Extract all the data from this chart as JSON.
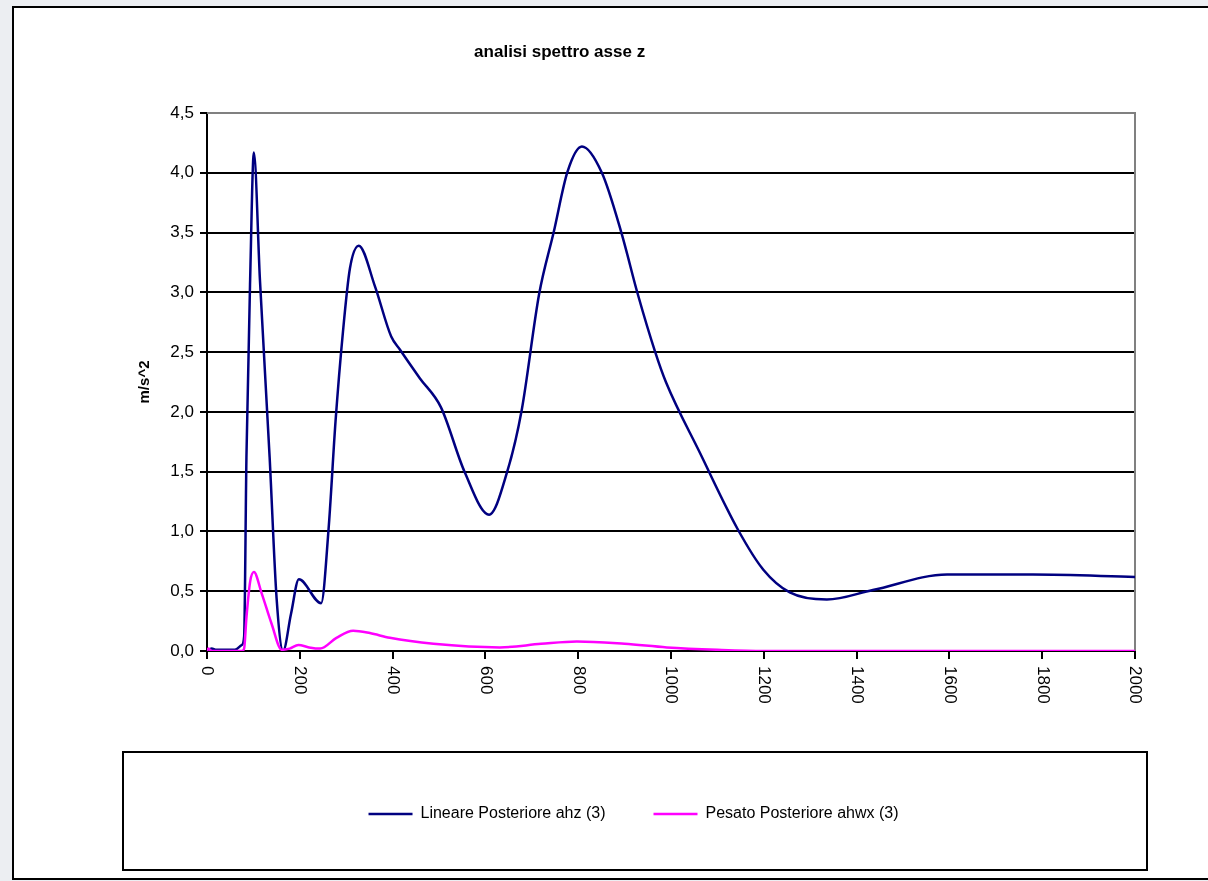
{
  "chart_data": {
    "type": "line",
    "title": "analisi spettro asse z",
    "ylabel": "m/s^2",
    "xlim": [
      0,
      2000
    ],
    "xticks": [
      0,
      200,
      400,
      600,
      800,
      1000,
      1200,
      1400,
      1600,
      1800,
      2000
    ],
    "ylim": [
      0,
      4.5
    ],
    "yticks": [
      {
        "value": 0,
        "label": "0,0"
      },
      {
        "value": 0.5,
        "label": "0,5"
      },
      {
        "value": 1,
        "label": "1,0"
      },
      {
        "value": 1.5,
        "label": "1,5"
      },
      {
        "value": 2,
        "label": "2,0"
      },
      {
        "value": 2.5,
        "label": "2,5"
      },
      {
        "value": 3,
        "label": "3,0"
      },
      {
        "value": 3.5,
        "label": "3,5"
      },
      {
        "value": 4,
        "label": "4,0"
      },
      {
        "value": 4.5,
        "label": "4,5"
      }
    ],
    "grid": "y",
    "legend": "bottom",
    "marker": "none",
    "line_style": "solid",
    "series": [
      {
        "name": "Lineare Posteriore ahz (3)",
        "color": "#000080",
        "x": [
          0,
          10,
          20,
          40,
          60,
          75,
          80,
          85,
          93,
          101,
          114,
          135,
          150,
          164,
          181,
          198,
          246,
          262,
          277,
          293,
          308,
          327,
          362,
          397,
          416,
          459,
          504,
          555,
          608,
          647,
          678,
          716,
          747,
          777,
          808,
          851,
          893,
          928,
          966,
          989,
          1062,
          1145,
          1199,
          1256,
          1336,
          1435,
          1595,
          1780,
          2000
        ],
        "values": [
          0,
          0.02,
          0.01,
          0.01,
          0.01,
          0.05,
          0.12,
          1.62,
          3.11,
          4.17,
          3.11,
          1.62,
          0.44,
          0,
          0.31,
          0.6,
          0.4,
          1.02,
          1.92,
          2.67,
          3.2,
          3.39,
          3.05,
          2.63,
          2.52,
          2.28,
          2.04,
          1.5,
          1.14,
          1.5,
          2.01,
          2.99,
          3.5,
          4.01,
          4.22,
          4,
          3.5,
          2.99,
          2.5,
          2.25,
          1.66,
          1.01,
          0.68,
          0.49,
          0.43,
          0.51,
          0.64,
          0.64,
          0.62
        ]
      },
      {
        "name": "Pesato Posteriore ahwx (3)",
        "color": "#ff00ff",
        "x": [
          0,
          3,
          10,
          40,
          75,
          80,
          85,
          93,
          101,
          118,
          139,
          161,
          178,
          197,
          220,
          244,
          279,
          315,
          351,
          394,
          488,
          631,
          720,
          797,
          900,
          991,
          1100,
          1200,
          1400,
          1600,
          1800,
          2000
        ],
        "values": [
          0,
          0.02,
          0,
          0,
          0,
          0.02,
          0.28,
          0.58,
          0.66,
          0.48,
          0.23,
          0.01,
          0.02,
          0.05,
          0.03,
          0.02,
          0.11,
          0.17,
          0.15,
          0.11,
          0.06,
          0.03,
          0.06,
          0.08,
          0.06,
          0.03,
          0.01,
          0,
          0,
          0,
          0,
          0
        ]
      }
    ]
  }
}
